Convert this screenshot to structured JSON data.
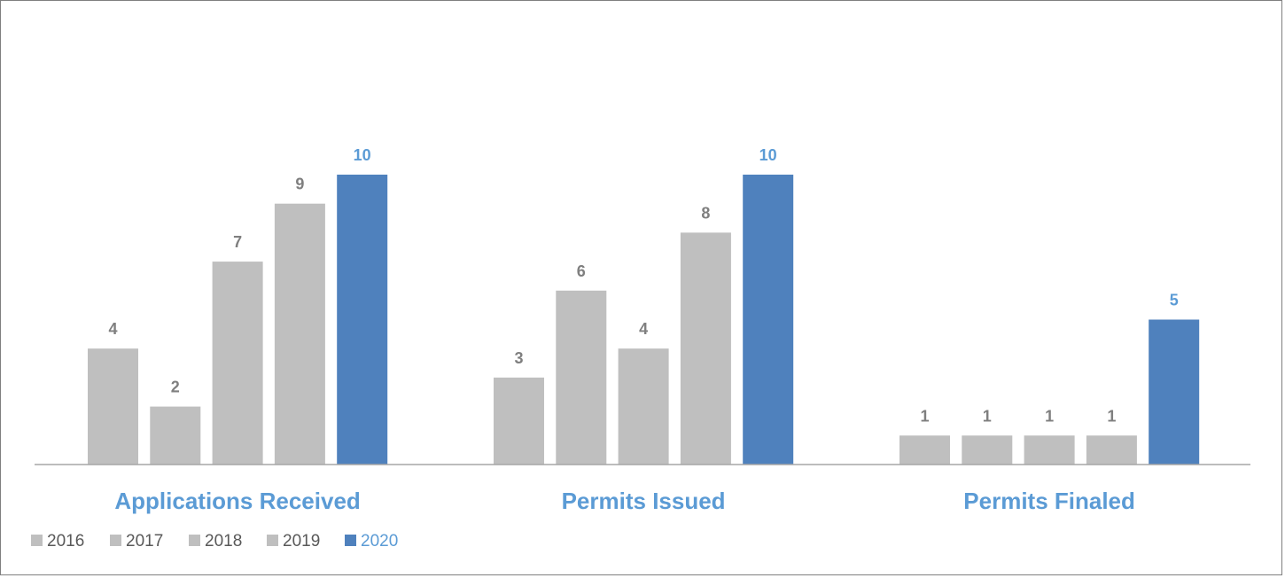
{
  "chart_data": {
    "type": "bar",
    "categories": [
      "Applications Received",
      "Permits Issued",
      "Permits Finaled"
    ],
    "series": [
      {
        "name": "2016",
        "values": [
          4,
          3,
          1
        ],
        "color": "#bfbfbf"
      },
      {
        "name": "2017",
        "values": [
          2,
          6,
          1
        ],
        "color": "#bfbfbf"
      },
      {
        "name": "2018",
        "values": [
          7,
          4,
          1
        ],
        "color": "#bfbfbf"
      },
      {
        "name": "2019",
        "values": [
          9,
          8,
          1
        ],
        "color": "#bfbfbf"
      },
      {
        "name": "2020",
        "values": [
          10,
          10,
          5
        ],
        "color": "#4f81bd"
      }
    ],
    "title": "",
    "xlabel": "",
    "ylabel": "",
    "ylim": [
      0,
      10
    ],
    "grid": false,
    "legend_position": "bottom-left",
    "colors": {
      "past_label": "#7f7f7f",
      "highlight_label": "#5b9bd5",
      "category_label": "#5b9bd5",
      "legend_text": "#595959",
      "axis": "#a6a6a6"
    }
  }
}
